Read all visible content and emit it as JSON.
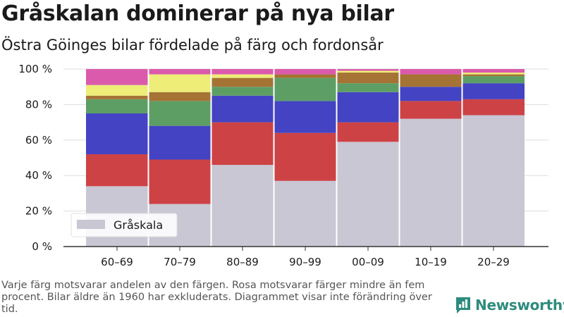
{
  "title": "Gråskalan dominerar på nya bilar",
  "subtitle": "Östra Göinges bilar fördelade på färg och fordonsår",
  "footnote": "Varje färg motsvarar andelen av den färgen. Rosa motsvarar färger mindre än fem procent. Bilar äldre än 1960 har exkluderats. Diagrammet visar inte förändring över tid.",
  "brand": {
    "name": "Newsworthy",
    "logo_icon": "bar-chart-logo-icon",
    "color": "#2e8b7d"
  },
  "colors": {
    "grayscale": "#c8c7d3",
    "red": "#cd4245",
    "blue": "#4343c3",
    "green": "#5d9e65",
    "brown": "#a57334",
    "yellow": "#eded78",
    "pink": "#db5aac"
  },
  "chart_data": {
    "type": "bar",
    "stacked": true,
    "percent": true,
    "categories": [
      "60–69",
      "70–79",
      "80–89",
      "90–99",
      "00–09",
      "10–19",
      "20–29"
    ],
    "series": [
      {
        "name": "Gråskala",
        "color_key": "grayscale",
        "values": [
          34,
          24,
          46,
          37,
          59,
          72,
          74
        ]
      },
      {
        "color_key": "red",
        "values": [
          18,
          25,
          24,
          27,
          11,
          10,
          9
        ]
      },
      {
        "color_key": "blue",
        "values": [
          23,
          19,
          15,
          18,
          17,
          8,
          9
        ]
      },
      {
        "color_key": "green",
        "values": [
          8,
          14,
          5,
          13,
          5,
          0,
          4
        ]
      },
      {
        "color_key": "brown",
        "values": [
          2,
          5,
          5,
          2,
          6,
          7,
          1
        ]
      },
      {
        "color_key": "yellow",
        "values": [
          6,
          10,
          2,
          0,
          1,
          0,
          1
        ]
      },
      {
        "color_key": "pink",
        "values": [
          9,
          3,
          3,
          3,
          1,
          3,
          2
        ]
      }
    ],
    "y_ticks": [
      "0 %",
      "20 %",
      "40 %",
      "60 %",
      "80 %",
      "100 %"
    ],
    "ylim": [
      0,
      100
    ],
    "grid": true,
    "legend_placement": "bottom-left"
  }
}
